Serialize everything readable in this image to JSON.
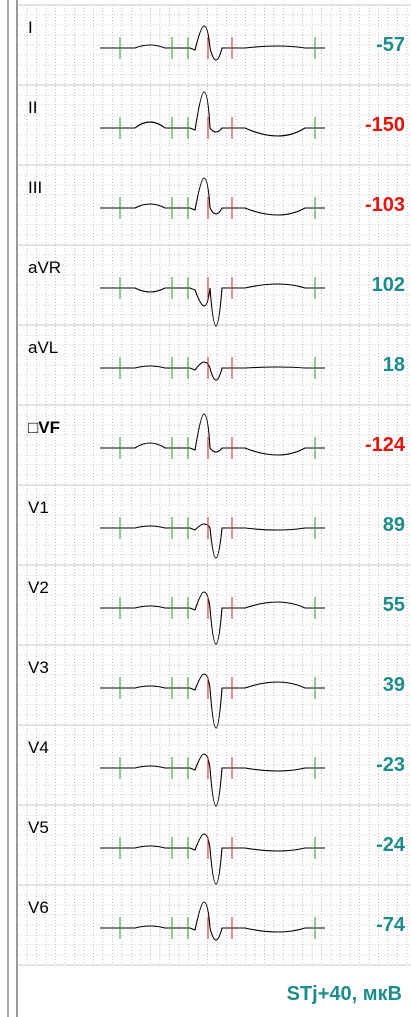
{
  "leads": [
    {
      "label": "I",
      "value": "-57",
      "color": "#1c8c8c"
    },
    {
      "label": "II",
      "value": "-150",
      "color": "#e8140c"
    },
    {
      "label": "III",
      "value": "-103",
      "color": "#e8140c"
    },
    {
      "label": "aVR",
      "value": "102",
      "color": "#1c8c8c"
    },
    {
      "label": "aVL",
      "value": "18",
      "color": "#1c8c8c"
    },
    {
      "label": "□VF",
      "value": "-124",
      "color": "#e8140c"
    },
    {
      "label": "V1",
      "value": "89",
      "color": "#1c8c8c"
    },
    {
      "label": "V2",
      "value": "55",
      "color": "#1c8c8c"
    },
    {
      "label": "V3",
      "value": "39",
      "color": "#1c8c8c"
    },
    {
      "label": "V4",
      "value": "-23",
      "color": "#1c8c8c"
    },
    {
      "label": "V5",
      "value": "-24",
      "color": "#1c8c8c"
    },
    {
      "label": "V6",
      "value": "-74",
      "color": "#1c8c8c"
    }
  ],
  "footer": "STj+40, мкВ"
}
